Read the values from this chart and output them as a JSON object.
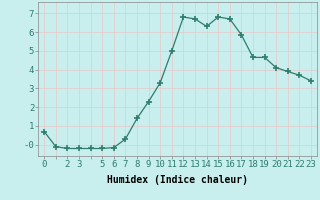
{
  "x": [
    0,
    1,
    2,
    3,
    4,
    5,
    6,
    7,
    8,
    9,
    10,
    11,
    12,
    13,
    14,
    15,
    16,
    17,
    18,
    19,
    20,
    21,
    22,
    23
  ],
  "y": [
    0.7,
    -0.1,
    -0.2,
    -0.2,
    -0.2,
    -0.2,
    -0.15,
    0.3,
    1.4,
    2.3,
    3.3,
    5.0,
    6.8,
    6.7,
    6.3,
    6.8,
    6.7,
    5.85,
    4.65,
    4.65,
    4.1,
    3.9,
    3.7,
    3.4
  ],
  "line_color": "#2e7d6e",
  "marker": "+",
  "marker_size": 4,
  "bg_color": "#c8eeed",
  "grid_color": "#e8c8c8",
  "xlabel": "Humidex (Indice chaleur)",
  "xlim": [
    -0.5,
    23.5
  ],
  "ylim": [
    -0.6,
    7.6
  ],
  "yticks": [
    0,
    1,
    2,
    3,
    4,
    5,
    6,
    7
  ],
  "ytick_labels": [
    "-0",
    "1",
    "2",
    "3",
    "4",
    "5",
    "6",
    "7"
  ],
  "xtick_labels": [
    "0",
    "",
    "2",
    "3",
    "",
    "5",
    "6",
    "7",
    "8",
    "9",
    "10",
    "11",
    "12",
    "13",
    "14",
    "15",
    "16",
    "17",
    "18",
    "19",
    "20",
    "21",
    "22",
    "23"
  ],
  "label_fontsize": 7,
  "tick_fontsize": 6.5
}
